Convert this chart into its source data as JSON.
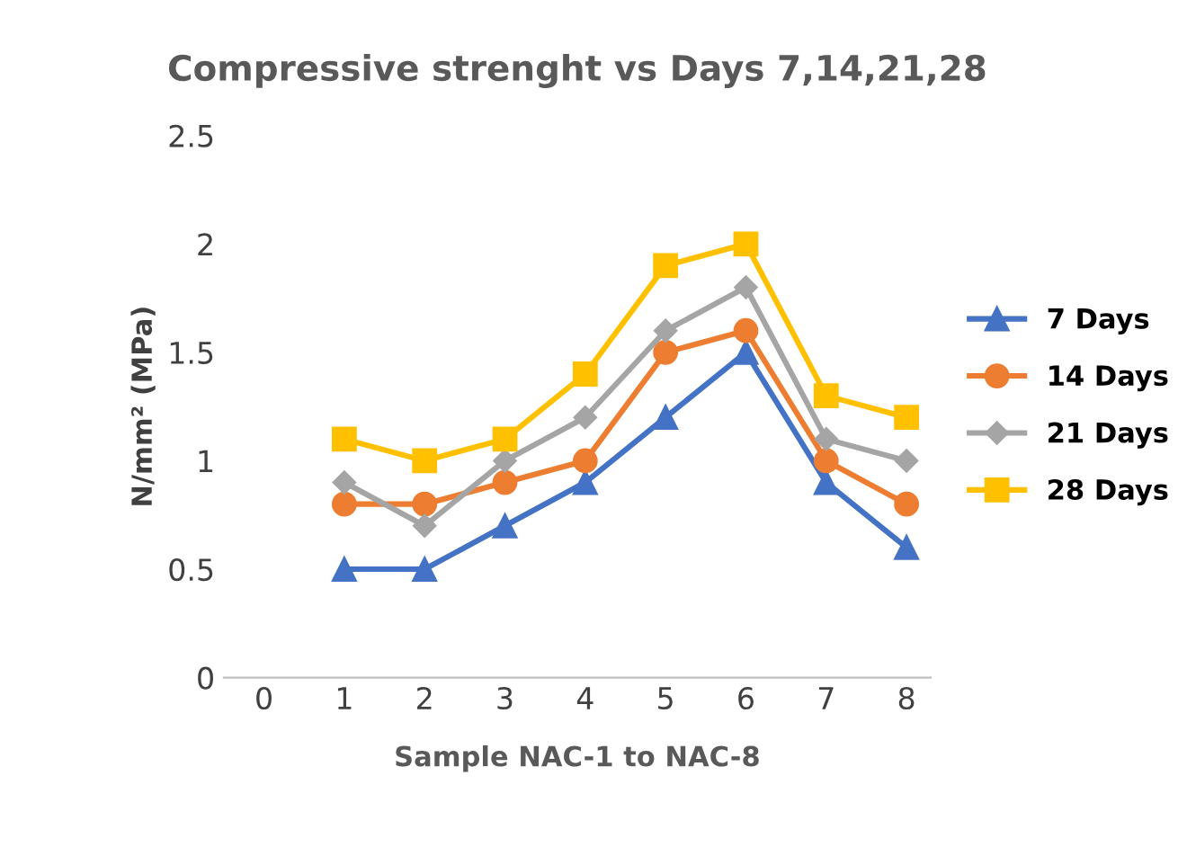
{
  "chart_data": {
    "type": "line",
    "title": "Compressive strenght vs Days 7,14,21,28",
    "xlabel": "Sample NAC-1 to NAC-8",
    "ylabel": "N/mm² (MPa)",
    "x": [
      1,
      2,
      3,
      4,
      5,
      6,
      7,
      8
    ],
    "series": [
      {
        "name": "7 Days",
        "color": "#4472c4",
        "marker": "triangle",
        "values": [
          0.5,
          0.5,
          0.7,
          0.9,
          1.2,
          1.5,
          0.9,
          0.6
        ]
      },
      {
        "name": "14 Days",
        "color": "#ed7d31",
        "marker": "circle",
        "values": [
          0.8,
          0.8,
          0.9,
          1.0,
          1.5,
          1.6,
          1.0,
          0.8
        ]
      },
      {
        "name": "21 Days",
        "color": "#a5a5a5",
        "marker": "diamond",
        "values": [
          0.9,
          0.7,
          1.0,
          1.2,
          1.6,
          1.8,
          1.1,
          1.0
        ]
      },
      {
        "name": "28 Days",
        "color": "#ffc000",
        "marker": "square",
        "values": [
          1.1,
          1.0,
          1.1,
          1.4,
          1.9,
          2.0,
          1.3,
          1.2
        ]
      }
    ],
    "xlim": [
      -0.5,
      8.3
    ],
    "xticks": [
      0,
      1,
      2,
      3,
      4,
      5,
      6,
      7,
      8
    ],
    "ylim": [
      0,
      2.5
    ],
    "yticks": [
      0,
      0.5,
      1,
      1.5,
      2,
      2.5
    ],
    "grid": false,
    "legend": "right",
    "line_style": "solid"
  }
}
